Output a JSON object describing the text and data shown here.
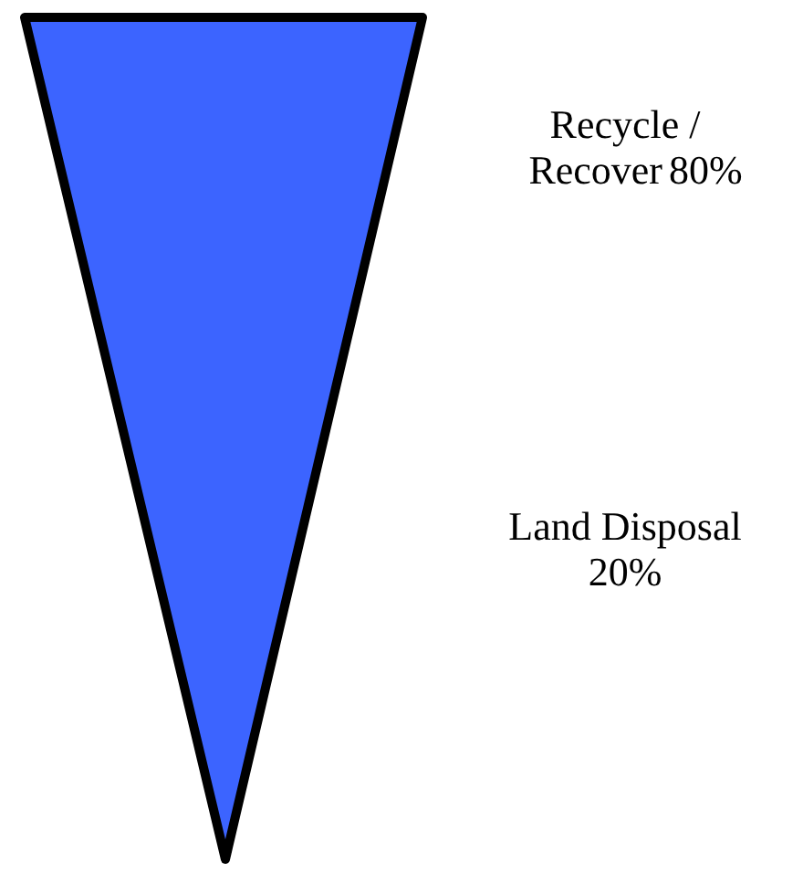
{
  "chart_data": {
    "type": "other",
    "categories": [
      "Recycle / Recover",
      "Land Disposal"
    ],
    "values": [
      80,
      20
    ],
    "value_labels": [
      "80%",
      "20%"
    ],
    "color": "#3c64ff"
  }
}
